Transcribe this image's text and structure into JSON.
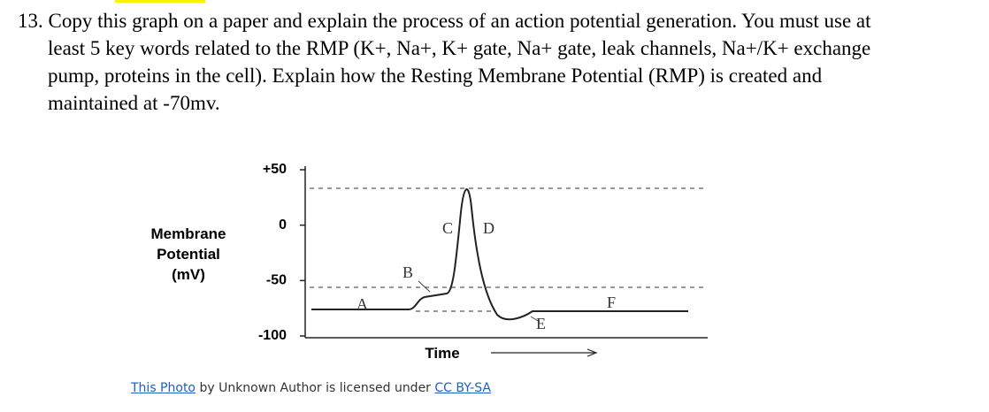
{
  "question": {
    "lines": [
      "13. Copy this graph on a paper and explain the process of an action potential generation. You must use at",
      "least 5 key words related to the RMP (K+, Na+, K+ gate, Na+ gate, leak channels, Na+/K+ exchange",
      "pump, proteins in the cell). Explain how the Resting Membrane Potential (RMP) is created and",
      "maintained at -70mv."
    ]
  },
  "figure": {
    "y_label": [
      "Membrane",
      "Potential",
      "(mV)"
    ],
    "x_label": "Time",
    "ylim": [
      -100,
      50
    ],
    "yticks": [
      {
        "value": 50,
        "label": "+50"
      },
      0,
      -50,
      -100
    ],
    "point_labels": [
      "A",
      "B",
      "C",
      "D",
      "E",
      "F"
    ]
  },
  "caption": {
    "link1": "This Photo",
    "middle": "by Unknown Author is licensed under",
    "link2": "CC BY-SA"
  }
}
